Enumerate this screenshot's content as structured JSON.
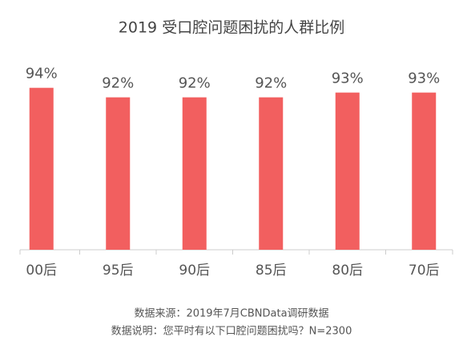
{
  "chart_data": {
    "type": "bar",
    "title": "2019 受口腔问题困扰的人群比例",
    "categories": [
      "00后",
      "95后",
      "90后",
      "85后",
      "80后",
      "70后"
    ],
    "values": [
      94,
      92,
      92,
      92,
      93,
      93
    ],
    "value_labels": [
      "94%",
      "92%",
      "92%",
      "92%",
      "93%",
      "93%"
    ],
    "color": "#f25f5f",
    "ylim": [
      60,
      100
    ],
    "notes": [
      "数据来源：2019年7月CBNData调研数据",
      "数据说明：您平时有以下口腔问题困扰吗？N=2300"
    ]
  }
}
